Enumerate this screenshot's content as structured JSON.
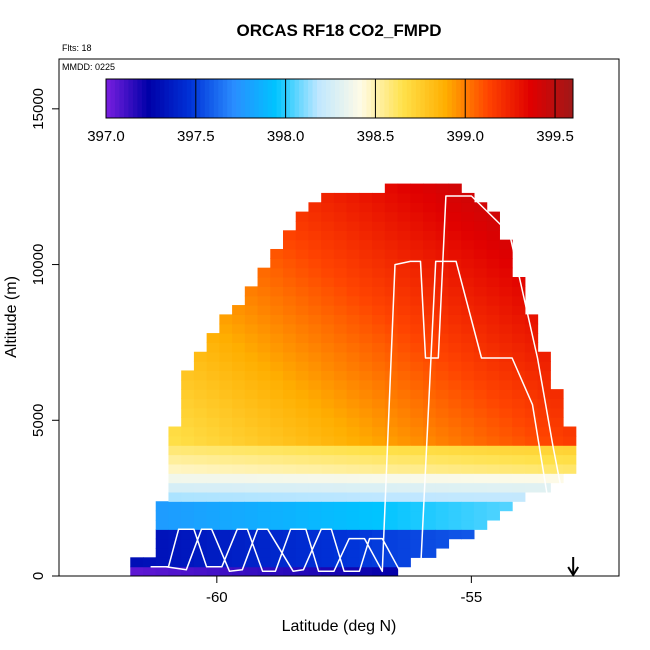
{
  "chart_data": {
    "type": "heatmap",
    "title": "ORCAS RF18 CO2_FMPD",
    "notes": [
      "Flts: 18",
      "MMDD: 0225"
    ],
    "xlabel": "Latitude (deg N)",
    "ylabel": "Altitude (m)",
    "xlim": [
      -63.1,
      -52.1
    ],
    "ylim": [
      0,
      16600
    ],
    "x_ticks": [
      -60,
      -55
    ],
    "y_ticks": [
      0,
      5000,
      10000,
      15000
    ],
    "colorbar": {
      "min": 397.0,
      "max": 399.6,
      "ticks": [
        397.0,
        397.5,
        398.0,
        398.5,
        399.0,
        399.5
      ],
      "tick_labels": [
        "397.0",
        "397.5",
        "398.0",
        "398.5",
        "399.0",
        "399.5"
      ],
      "colors": [
        "#7a1fe0",
        "#0000a8",
        "#0033d8",
        "#2a8cff",
        "#00c4ff",
        "#bfe7ff",
        "#fffbe6",
        "#ffe14a",
        "#ffae00",
        "#ff4400",
        "#e00000",
        "#a01818"
      ]
    },
    "flight_track": {
      "color": "#ffffff",
      "lat": [
        -61.3,
        -60.95,
        -60.75,
        -60.45,
        -60.2,
        -59.9,
        -59.6,
        -59.4,
        -59.1,
        -58.85,
        -58.55,
        -58.25,
        -58.0,
        -57.7,
        -57.4,
        -57.1,
        -56.75,
        -56.5,
        -56.2,
        -56.0,
        -55.9,
        -55.65,
        -55.5,
        -55.0,
        -54.25,
        -53.7,
        -53.4,
        -53.2,
        -53.5,
        -53.8,
        -54.2,
        -54.8,
        -55.3,
        -55.7,
        -56.0,
        -56.4,
        -56.75,
        -57.0,
        -57.2,
        -57.5,
        -57.75,
        -57.95,
        -58.3,
        -58.5,
        -59.0,
        -59.2,
        -59.5,
        -59.75,
        -60.1,
        -60.3,
        -60.6,
        -61.0,
        -61.2
      ],
      "alt": [
        300,
        300,
        1500,
        1500,
        300,
        300,
        1500,
        1500,
        150,
        150,
        1500,
        1500,
        150,
        150,
        1200,
        1200,
        150,
        10000,
        10100,
        10100,
        7000,
        7000,
        12200,
        12200,
        11000,
        7000,
        4200,
        2500,
        2500,
        5500,
        7000,
        7000,
        10100,
        10100,
        150,
        150,
        1200,
        1200,
        150,
        150,
        1500,
        1500,
        200,
        150,
        1500,
        1500,
        200,
        150,
        1500,
        1500,
        200,
        300,
        300
      ]
    },
    "arrow": {
      "lat": -53.0,
      "direction": "down"
    }
  }
}
